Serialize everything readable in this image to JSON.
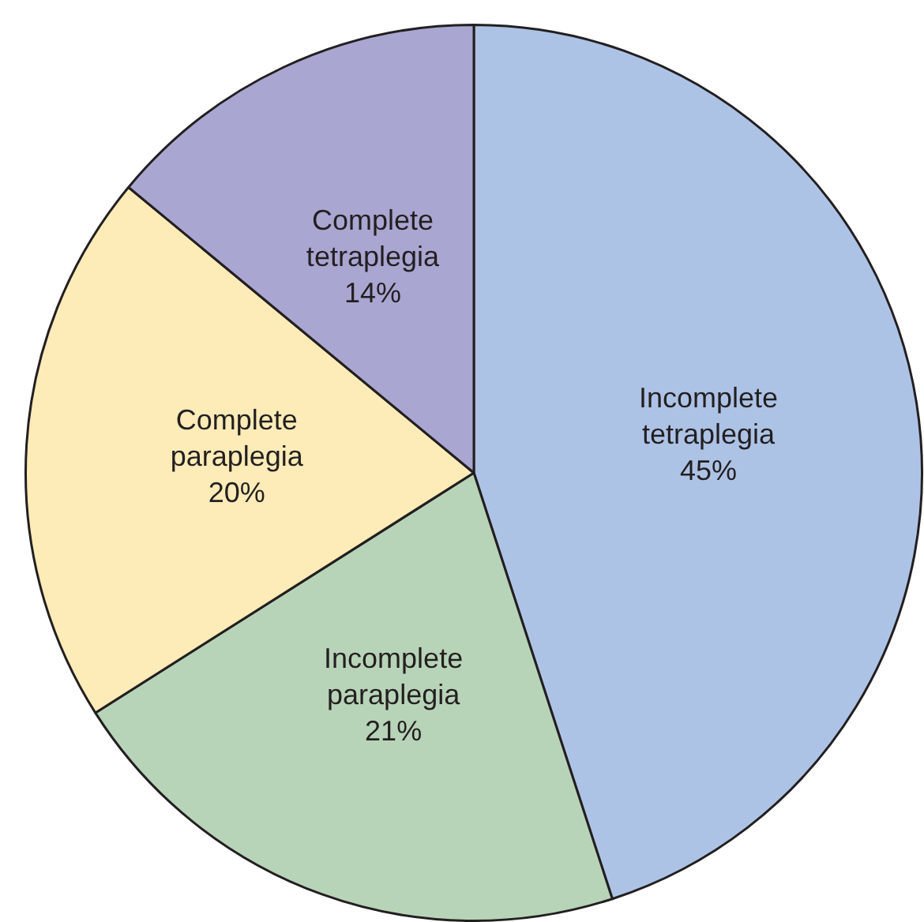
{
  "chart_data": {
    "type": "pie",
    "categories": [
      "Incomplete tetraplegia",
      "Incomplete paraplegia",
      "Complete paraplegia",
      "Complete tetraplegia"
    ],
    "values": [
      45,
      21,
      20,
      14
    ],
    "value_labels": [
      "45%",
      "21%",
      "20%",
      "14%"
    ],
    "colors": [
      "#adc3e6",
      "#b8d4b8",
      "#fdebb8",
      "#aaa6d2"
    ],
    "legend": false
  }
}
